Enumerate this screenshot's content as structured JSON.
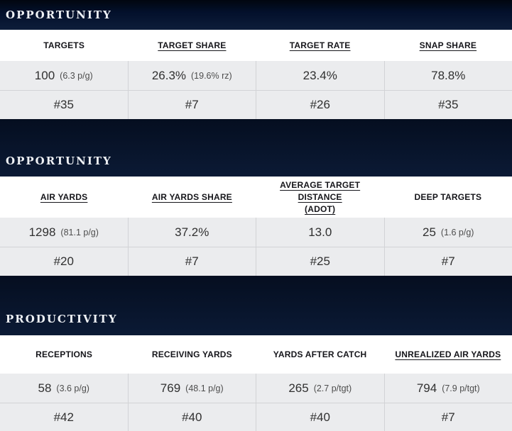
{
  "colors": {
    "band_navy": "#0d1d3a",
    "band_navy_top": "#01060f",
    "row_background": "#ebecee",
    "divider": "#d2d3d6",
    "header_text": "#15151a",
    "value_text": "#303030",
    "band_text": "#eef1f5"
  },
  "sections": [
    {
      "title": "OPPORTUNITY",
      "columns": [
        {
          "label": "TARGETS",
          "underlined": false,
          "value": "100",
          "note": "(6.3 p/g)",
          "rank": "#35"
        },
        {
          "label": "TARGET SHARE",
          "underlined": true,
          "value": "26.3%",
          "note": "(19.6% rz)",
          "rank": "#7"
        },
        {
          "label": "TARGET RATE",
          "underlined": true,
          "value": "23.4%",
          "note": "",
          "rank": "#26"
        },
        {
          "label": "SNAP SHARE",
          "underlined": true,
          "value": "78.8%",
          "note": "",
          "rank": "#35"
        }
      ]
    },
    {
      "title": "OPPORTUNITY",
      "columns": [
        {
          "label": "AIR YARDS",
          "underlined": true,
          "value": "1298",
          "note": "(81.1 p/g)",
          "rank": "#20"
        },
        {
          "label": "AIR YARDS SHARE",
          "underlined": true,
          "value": "37.2%",
          "note": "",
          "rank": "#7"
        },
        {
          "label": "AVERAGE TARGET DISTANCE\n(ADOT)",
          "underlined": true,
          "value": "13.0",
          "note": "",
          "rank": "#25"
        },
        {
          "label": "DEEP TARGETS",
          "underlined": false,
          "value": "25",
          "note": "(1.6 p/g)",
          "rank": "#7"
        }
      ]
    },
    {
      "title": "PRODUCTIVITY",
      "columns": [
        {
          "label": "RECEPTIONS",
          "underlined": false,
          "value": "58",
          "note": "(3.6 p/g)",
          "rank": "#42"
        },
        {
          "label": "RECEIVING YARDS",
          "underlined": false,
          "value": "769",
          "note": "(48.1 p/g)",
          "rank": "#40"
        },
        {
          "label": "YARDS AFTER CATCH",
          "underlined": false,
          "value": "265",
          "note": "(2.7 p/tgt)",
          "rank": "#40"
        },
        {
          "label": "UNREALIZED AIR YARDS",
          "underlined": true,
          "value": "794",
          "note": "(7.9 p/tgt)",
          "rank": "#7"
        }
      ]
    }
  ]
}
